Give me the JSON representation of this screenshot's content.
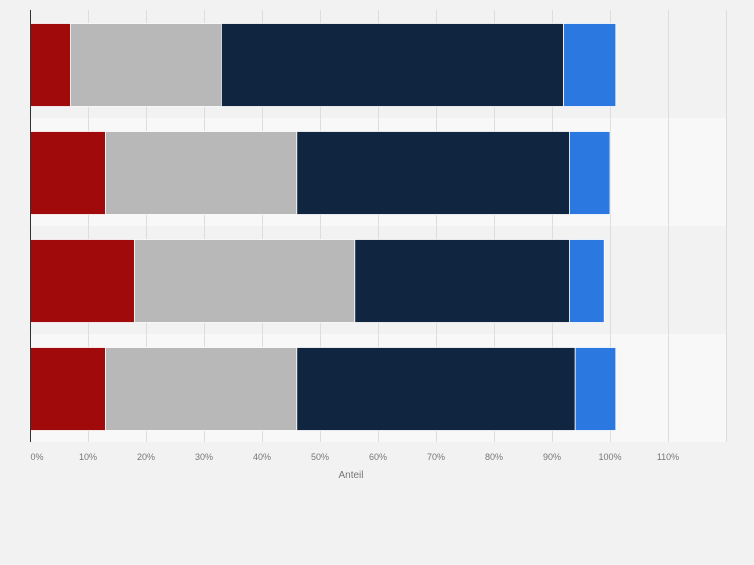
{
  "chart_data": {
    "type": "bar",
    "orientation": "horizontal",
    "stacked": true,
    "categories": [
      "",
      "",
      "",
      ""
    ],
    "series": [
      {
        "color": "#a10a0a",
        "values": [
          7,
          13,
          18,
          13
        ]
      },
      {
        "color": "#b8b8b8",
        "values": [
          26,
          33,
          38,
          33
        ]
      },
      {
        "color": "#10253f",
        "values": [
          59,
          47,
          37,
          48
        ]
      },
      {
        "color": "#2b78e0",
        "values": [
          9,
          7,
          6,
          7
        ]
      }
    ],
    "xlabel": "Anteil",
    "xlim": [
      0,
      120
    ],
    "x_ticks": [
      "0%",
      "10%",
      "20%",
      "30%",
      "40%",
      "50%",
      "60%",
      "70%",
      "80%",
      "90%",
      "100%",
      "110%"
    ],
    "grid": true,
    "legend": "none"
  }
}
